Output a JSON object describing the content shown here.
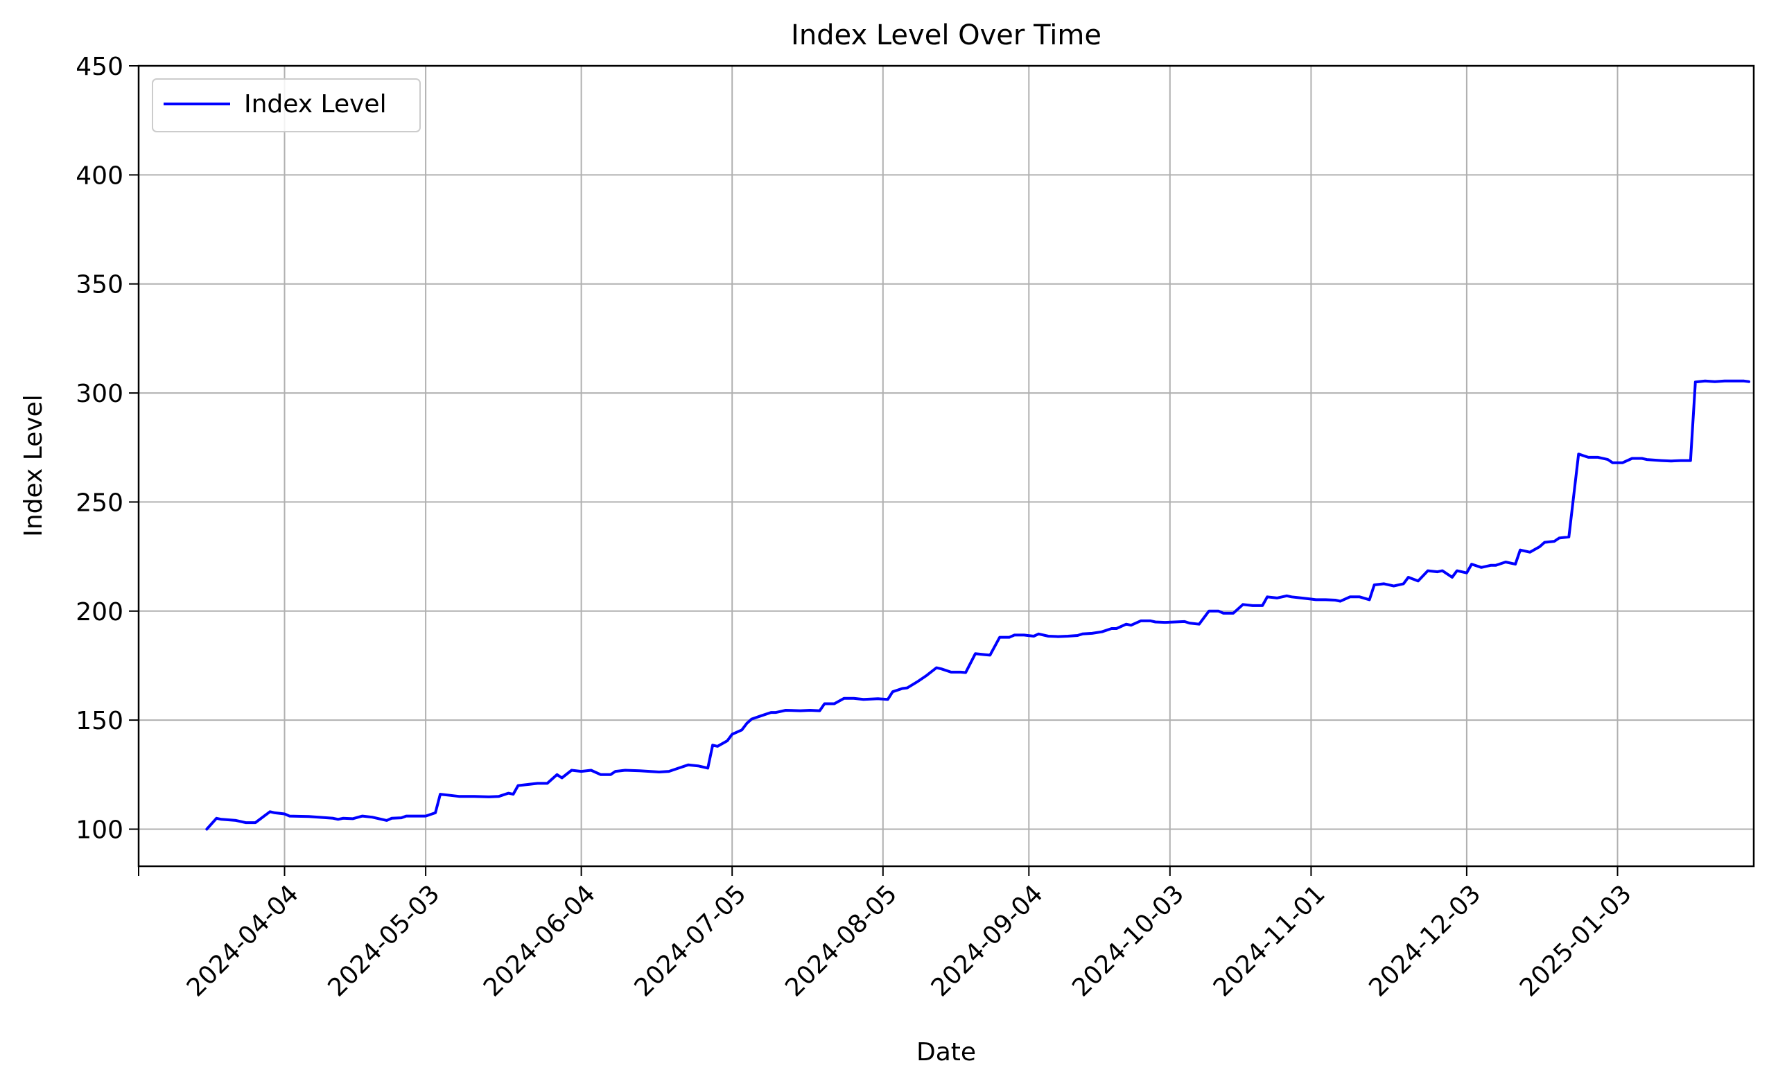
{
  "chart_data": {
    "type": "line",
    "title": "Index Level Over Time",
    "xlabel": "Date",
    "ylabel": "Index Level",
    "xlim": [
      "2024-03-05",
      "2025-01-31"
    ],
    "ylim": [
      83,
      450
    ],
    "x_ticks": [
      "2024-04-04",
      "2024-05-03",
      "2024-06-04",
      "2024-07-05",
      "2024-08-05",
      "2024-09-04",
      "2024-10-03",
      "2024-11-01",
      "2024-12-03",
      "2025-01-03"
    ],
    "y_ticks": [
      100,
      150,
      200,
      250,
      300,
      350,
      400,
      450
    ],
    "grid": true,
    "legend_position": "upper left",
    "series": [
      {
        "name": "Index Level",
        "color": "#0000ff",
        "points": [
          [
            "2024-03-19",
            100
          ],
          [
            "2024-03-21",
            105
          ],
          [
            "2024-03-22",
            104.5
          ],
          [
            "2024-03-25",
            104
          ],
          [
            "2024-03-27",
            103
          ],
          [
            "2024-03-29",
            103
          ],
          [
            "2024-04-01",
            108
          ],
          [
            "2024-04-02",
            107.5
          ],
          [
            "2024-04-04",
            107
          ],
          [
            "2024-04-05",
            106
          ],
          [
            "2024-04-09",
            105.8
          ],
          [
            "2024-04-11",
            105.5
          ],
          [
            "2024-04-14",
            105
          ],
          [
            "2024-04-15",
            104.5
          ],
          [
            "2024-04-16",
            105
          ],
          [
            "2024-04-18",
            104.8
          ],
          [
            "2024-04-20",
            106
          ],
          [
            "2024-04-22",
            105.5
          ],
          [
            "2024-04-25",
            104
          ],
          [
            "2024-04-26",
            105
          ],
          [
            "2024-04-28",
            105.2
          ],
          [
            "2024-04-29",
            106
          ],
          [
            "2024-05-01",
            106
          ],
          [
            "2024-05-03",
            106
          ],
          [
            "2024-05-05",
            107.5
          ],
          [
            "2024-05-06",
            116
          ],
          [
            "2024-05-08",
            115.5
          ],
          [
            "2024-05-10",
            115
          ],
          [
            "2024-05-13",
            115
          ],
          [
            "2024-05-16",
            114.8
          ],
          [
            "2024-05-18",
            115
          ],
          [
            "2024-05-20",
            116.5
          ],
          [
            "2024-05-21",
            116
          ],
          [
            "2024-05-22",
            120
          ],
          [
            "2024-05-24",
            120.5
          ],
          [
            "2024-05-26",
            121
          ],
          [
            "2024-05-28",
            121
          ],
          [
            "2024-05-30",
            125
          ],
          [
            "2024-05-31",
            123.5
          ],
          [
            "2024-06-02",
            127
          ],
          [
            "2024-06-04",
            126.5
          ],
          [
            "2024-06-06",
            127
          ],
          [
            "2024-06-08",
            125
          ],
          [
            "2024-06-10",
            125
          ],
          [
            "2024-06-11",
            126.5
          ],
          [
            "2024-06-13",
            127
          ],
          [
            "2024-06-16",
            126.8
          ],
          [
            "2024-06-18",
            126.5
          ],
          [
            "2024-06-20",
            126.2
          ],
          [
            "2024-06-22",
            126.5
          ],
          [
            "2024-06-24",
            128
          ],
          [
            "2024-06-26",
            129.5
          ],
          [
            "2024-06-28",
            129
          ],
          [
            "2024-06-30",
            128
          ],
          [
            "2024-07-01",
            138.5
          ],
          [
            "2024-07-02",
            138
          ],
          [
            "2024-07-04",
            140.5
          ],
          [
            "2024-07-05",
            143.5
          ],
          [
            "2024-07-07",
            145.5
          ],
          [
            "2024-07-08",
            148.5
          ],
          [
            "2024-07-09",
            150.5
          ],
          [
            "2024-07-11",
            152
          ],
          [
            "2024-07-13",
            153.5
          ],
          [
            "2024-07-14",
            153.5
          ],
          [
            "2024-07-16",
            154.5
          ],
          [
            "2024-07-19",
            154.3
          ],
          [
            "2024-07-21",
            154.5
          ],
          [
            "2024-07-23",
            154.3
          ],
          [
            "2024-07-24",
            157.5
          ],
          [
            "2024-07-26",
            157.5
          ],
          [
            "2024-07-28",
            160
          ],
          [
            "2024-07-30",
            160
          ],
          [
            "2024-08-01",
            159.5
          ],
          [
            "2024-08-04",
            159.8
          ],
          [
            "2024-08-06",
            159.5
          ],
          [
            "2024-08-07",
            163
          ],
          [
            "2024-08-09",
            164.5
          ],
          [
            "2024-08-10",
            164.8
          ],
          [
            "2024-08-12",
            167.5
          ],
          [
            "2024-08-14",
            170.5
          ],
          [
            "2024-08-16",
            174
          ],
          [
            "2024-08-17",
            173.5
          ],
          [
            "2024-08-19",
            172
          ],
          [
            "2024-08-21",
            172
          ],
          [
            "2024-08-22",
            171.8
          ],
          [
            "2024-08-24",
            180.5
          ],
          [
            "2024-08-26",
            180
          ],
          [
            "2024-08-27",
            179.8
          ],
          [
            "2024-08-29",
            188
          ],
          [
            "2024-08-31",
            188
          ],
          [
            "2024-09-01",
            189
          ],
          [
            "2024-09-03",
            189
          ],
          [
            "2024-09-05",
            188.5
          ],
          [
            "2024-09-06",
            189.5
          ],
          [
            "2024-09-08",
            188.5
          ],
          [
            "2024-09-10",
            188.3
          ],
          [
            "2024-09-12",
            188.5
          ],
          [
            "2024-09-14",
            188.8
          ],
          [
            "2024-09-15",
            189.5
          ],
          [
            "2024-09-17",
            189.8
          ],
          [
            "2024-09-19",
            190.5
          ],
          [
            "2024-09-21",
            192
          ],
          [
            "2024-09-22",
            192
          ],
          [
            "2024-09-24",
            194
          ],
          [
            "2024-09-25",
            193.5
          ],
          [
            "2024-09-27",
            195.5
          ],
          [
            "2024-09-29",
            195.5
          ],
          [
            "2024-09-30",
            195
          ],
          [
            "2024-10-02",
            194.8
          ],
          [
            "2024-10-04",
            195
          ],
          [
            "2024-10-06",
            195.2
          ],
          [
            "2024-10-07",
            194.5
          ],
          [
            "2024-10-09",
            194
          ],
          [
            "2024-10-11",
            200
          ],
          [
            "2024-10-13",
            200
          ],
          [
            "2024-10-14",
            199
          ],
          [
            "2024-10-16",
            199
          ],
          [
            "2024-10-18",
            203
          ],
          [
            "2024-10-20",
            202.5
          ],
          [
            "2024-10-22",
            202.5
          ],
          [
            "2024-10-23",
            206.5
          ],
          [
            "2024-10-25",
            206
          ],
          [
            "2024-10-27",
            207
          ],
          [
            "2024-10-28",
            206.5
          ],
          [
            "2024-10-30",
            206
          ],
          [
            "2024-11-01",
            205.5
          ],
          [
            "2024-11-02",
            205.2
          ],
          [
            "2024-11-04",
            205.2
          ],
          [
            "2024-11-06",
            205
          ],
          [
            "2024-11-07",
            204.5
          ],
          [
            "2024-11-09",
            206.5
          ],
          [
            "2024-11-11",
            206.5
          ],
          [
            "2024-11-13",
            205.2
          ],
          [
            "2024-11-14",
            212
          ],
          [
            "2024-11-16",
            212.5
          ],
          [
            "2024-11-18",
            211.5
          ],
          [
            "2024-11-20",
            212.5
          ],
          [
            "2024-11-21",
            215.5
          ],
          [
            "2024-11-23",
            213.8
          ],
          [
            "2024-11-25",
            218.5
          ],
          [
            "2024-11-27",
            218
          ],
          [
            "2024-11-28",
            218.5
          ],
          [
            "2024-11-30",
            215.5
          ],
          [
            "2024-12-01",
            218.5
          ],
          [
            "2024-12-03",
            217.5
          ],
          [
            "2024-12-04",
            221.5
          ],
          [
            "2024-12-06",
            220
          ],
          [
            "2024-12-08",
            221
          ],
          [
            "2024-12-09",
            221
          ],
          [
            "2024-12-11",
            222.5
          ],
          [
            "2024-12-13",
            221.5
          ],
          [
            "2024-12-14",
            228
          ],
          [
            "2024-12-16",
            227
          ],
          [
            "2024-12-18",
            229.5
          ],
          [
            "2024-12-19",
            231.5
          ],
          [
            "2024-12-21",
            232
          ],
          [
            "2024-12-22",
            233.5
          ],
          [
            "2024-12-24",
            234
          ],
          [
            "2024-12-26",
            272
          ],
          [
            "2024-12-28",
            270.5
          ],
          [
            "2024-12-30",
            270.5
          ],
          [
            "2025-01-01",
            269.5
          ],
          [
            "2025-01-02",
            268
          ],
          [
            "2025-01-04",
            268
          ],
          [
            "2025-01-06",
            270
          ],
          [
            "2025-01-08",
            270
          ],
          [
            "2025-01-09",
            269.5
          ],
          [
            "2025-01-12",
            269
          ],
          [
            "2025-01-14",
            268.8
          ],
          [
            "2025-01-16",
            269
          ],
          [
            "2025-01-18",
            269
          ],
          [
            "2025-01-19",
            305
          ],
          [
            "2025-01-21",
            305.5
          ],
          [
            "2025-01-23",
            305.2
          ],
          [
            "2025-01-25",
            305.5
          ],
          [
            "2025-01-27",
            305.5
          ],
          [
            "2025-01-29",
            305.5
          ],
          [
            "2025-01-30",
            305.2
          ]
        ]
      }
    ]
  }
}
